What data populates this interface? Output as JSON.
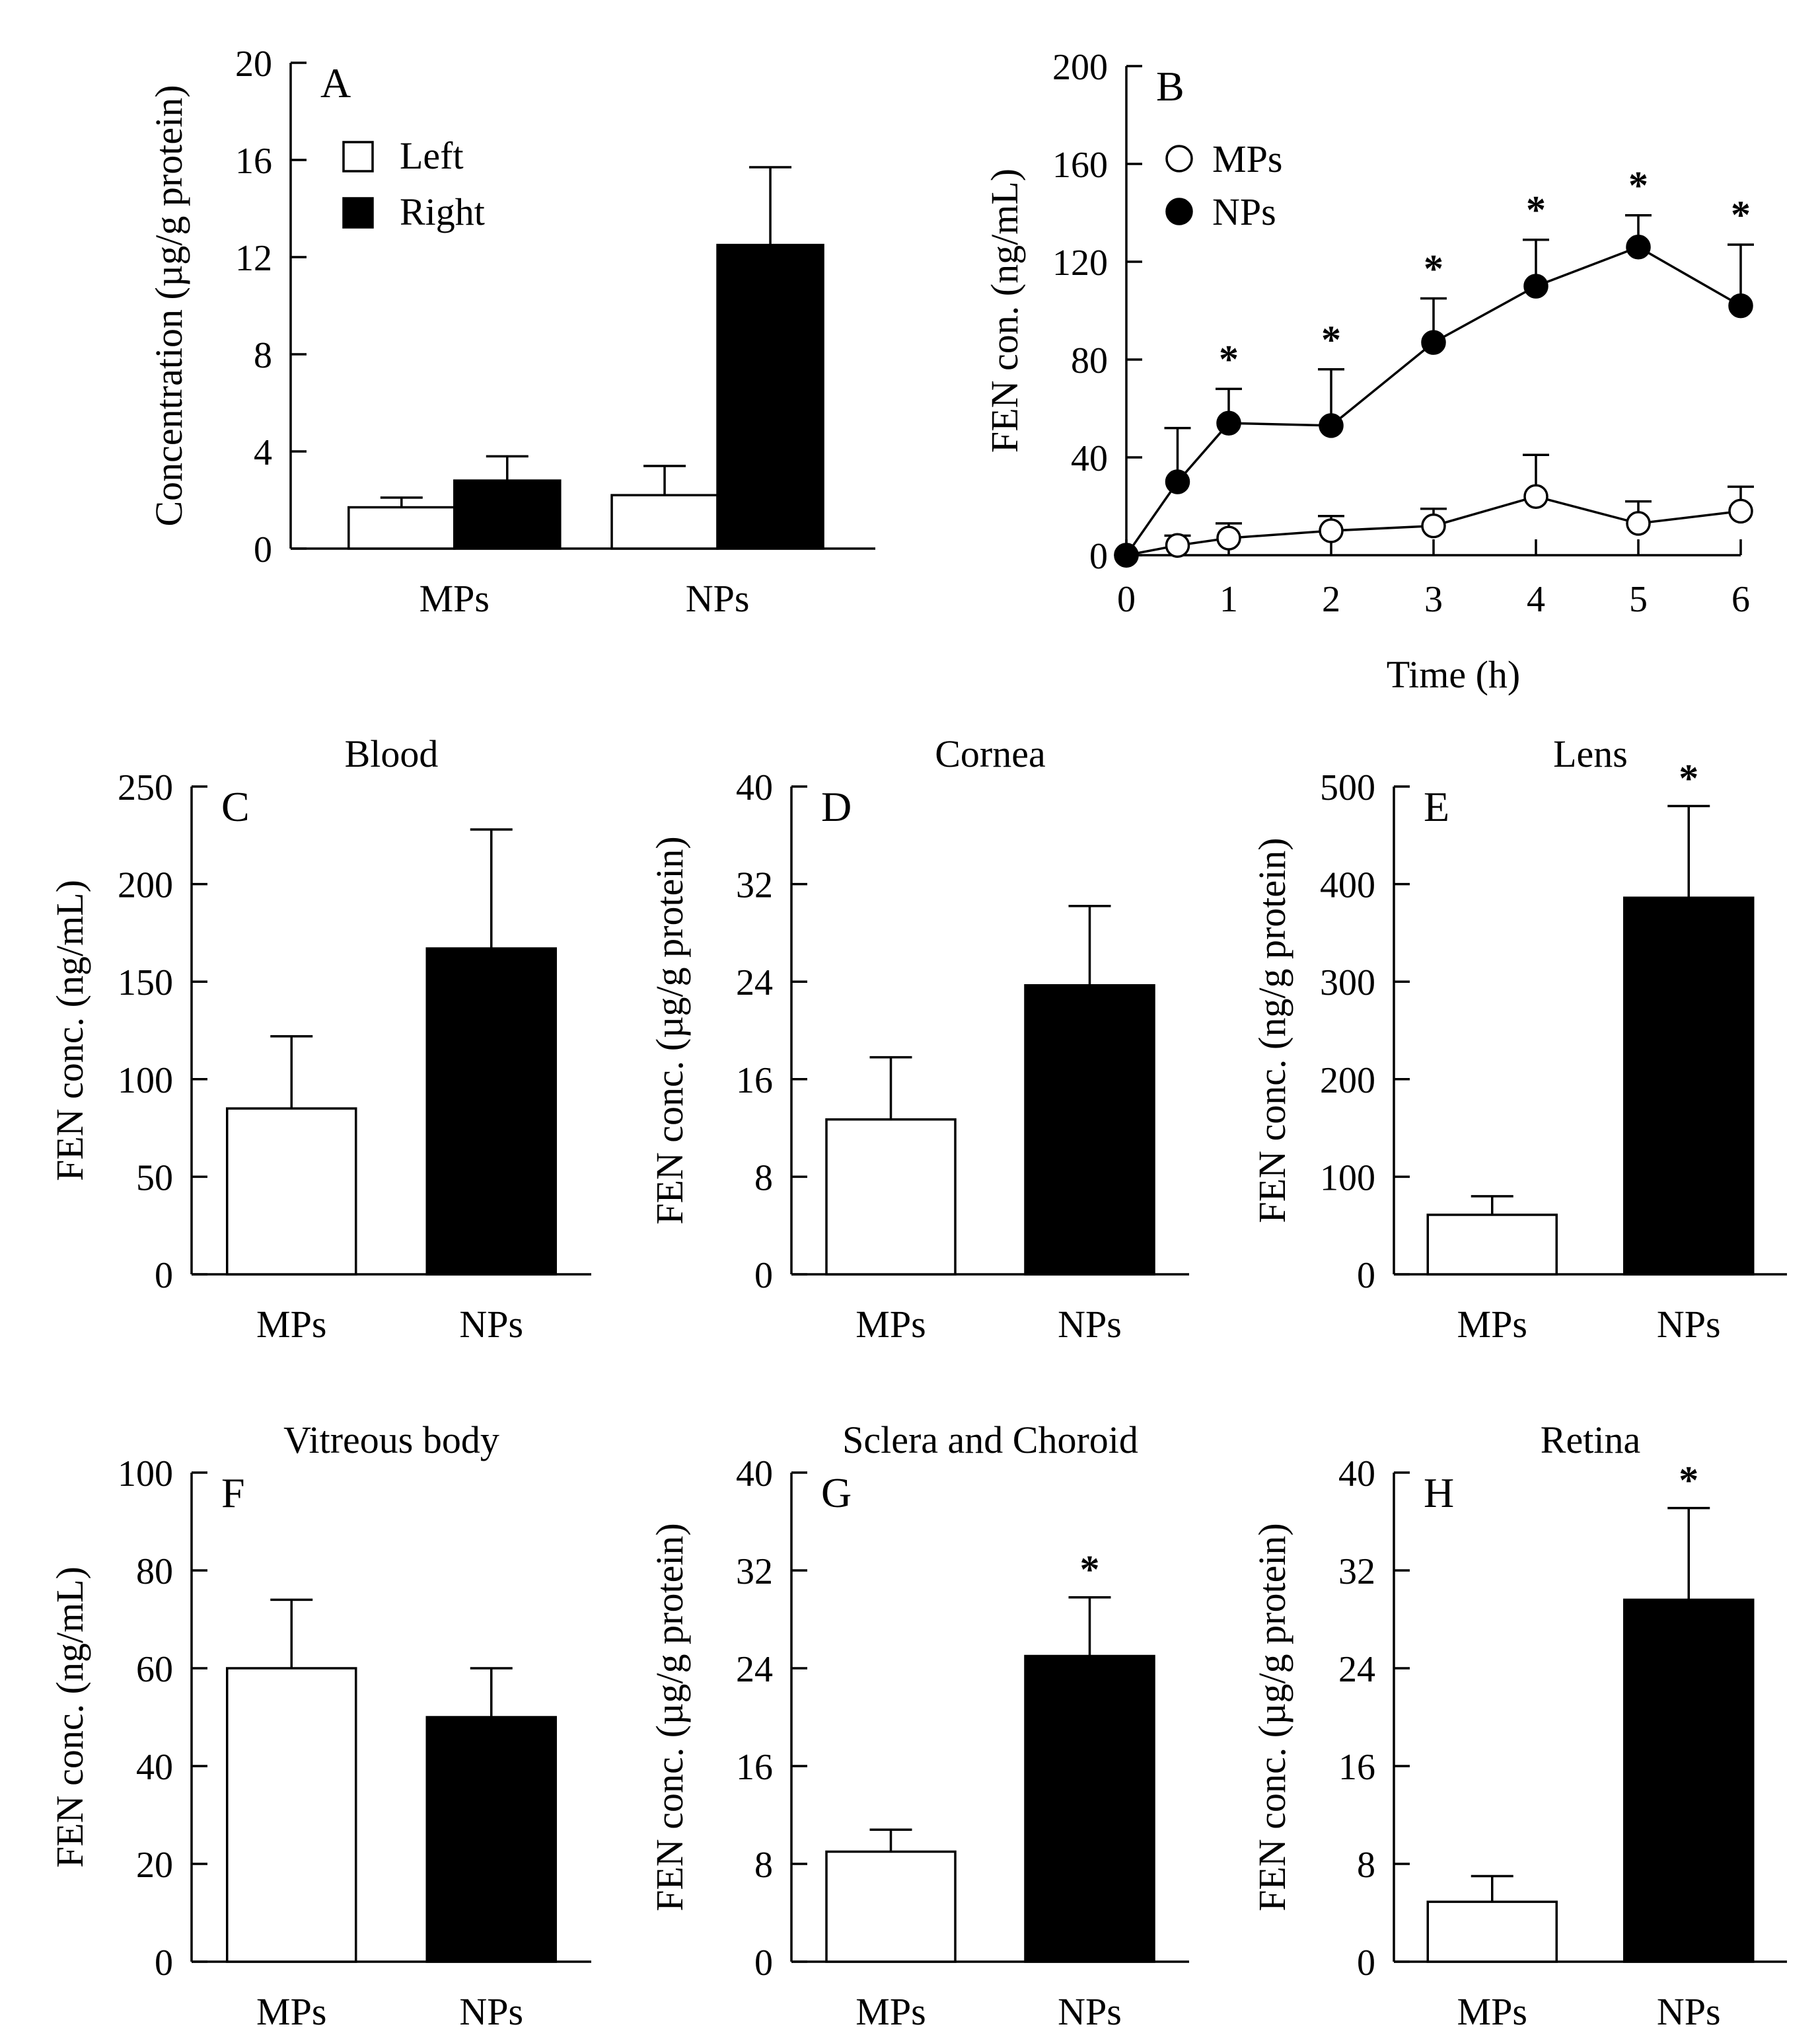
{
  "chart_data": [
    {
      "id": "A",
      "type": "bar",
      "panel_label": "A",
      "title": "",
      "xlabel": "",
      "ylabel": "Concentration (µg/g protein)",
      "ylim": [
        0,
        20
      ],
      "yticks": [
        "0",
        "4",
        "8",
        "12",
        "16",
        "20"
      ],
      "categories": [
        "MPs",
        "NPs"
      ],
      "series": [
        {
          "name": "Left",
          "fill": "#ffffff",
          "values": [
            1.7,
            2.2
          ],
          "errors": [
            0.4,
            1.2
          ]
        },
        {
          "name": "Right",
          "fill": "#000000",
          "values": [
            2.8,
            12.5
          ],
          "errors": [
            1.0,
            3.2
          ]
        }
      ],
      "legend": {
        "position": "top-left",
        "entries": [
          "Left",
          "Right"
        ]
      },
      "annotations": []
    },
    {
      "id": "B",
      "type": "line",
      "panel_label": "B",
      "title": "",
      "xlabel": "Time (h)",
      "ylabel": "FEN con. (ng/mL)",
      "xlim": [
        0,
        6
      ],
      "ylim": [
        0,
        200
      ],
      "xticks": [
        "0",
        "1",
        "2",
        "3",
        "4",
        "5",
        "6"
      ],
      "yticks": [
        "0",
        "40",
        "80",
        "120",
        "160",
        "200"
      ],
      "x": [
        0,
        0.5,
        1,
        2,
        3,
        4,
        5,
        6
      ],
      "series": [
        {
          "name": "MPs",
          "marker": "open-circle",
          "values": [
            0,
            4,
            7,
            10,
            12,
            24,
            13,
            18
          ],
          "errors": [
            0,
            4,
            6,
            6,
            7,
            17,
            9,
            10
          ]
        },
        {
          "name": "NPs",
          "marker": "filled-circle",
          "values": [
            0,
            30,
            54,
            53,
            87,
            110,
            126,
            102
          ],
          "errors": [
            0,
            22,
            14,
            23,
            18,
            19,
            13,
            25
          ]
        }
      ],
      "significance": [
        {
          "x": 1,
          "mark": "*"
        },
        {
          "x": 2,
          "mark": "*"
        },
        {
          "x": 3,
          "mark": "*"
        },
        {
          "x": 4,
          "mark": "*"
        },
        {
          "x": 5,
          "mark": "*"
        },
        {
          "x": 6,
          "mark": "*"
        }
      ],
      "legend": {
        "position": "top-left",
        "entries": [
          "MPs",
          "NPs"
        ]
      }
    },
    {
      "id": "C",
      "type": "bar",
      "panel_label": "C",
      "title": "Blood",
      "xlabel": "",
      "ylabel": "FEN conc. (ng/mL)",
      "ylim": [
        0,
        250
      ],
      "yticks": [
        "0",
        "50",
        "100",
        "150",
        "200",
        "250"
      ],
      "categories": [
        "MPs",
        "NPs"
      ],
      "series": [
        {
          "name": "FEN conc.",
          "values": [
            85,
            167
          ],
          "errors": [
            37,
            61
          ],
          "fills": [
            "#ffffff",
            "#000000"
          ]
        }
      ],
      "annotations": []
    },
    {
      "id": "D",
      "type": "bar",
      "panel_label": "D",
      "title": "Cornea",
      "xlabel": "",
      "ylabel": "FEN conc. (µg/g protein)",
      "ylim": [
        0,
        40
      ],
      "yticks": [
        "0",
        "8",
        "16",
        "24",
        "32",
        "40"
      ],
      "categories": [
        "MPs",
        "NPs"
      ],
      "series": [
        {
          "name": "FEN conc.",
          "values": [
            12.7,
            23.7
          ],
          "errors": [
            5.1,
            6.5
          ],
          "fills": [
            "#ffffff",
            "#000000"
          ]
        }
      ],
      "annotations": []
    },
    {
      "id": "E",
      "type": "bar",
      "panel_label": "E",
      "title": "Lens",
      "xlabel": "",
      "ylabel": "FEN conc. (ng/g protein)",
      "ylim": [
        0,
        500
      ],
      "yticks": [
        "0",
        "100",
        "200",
        "300",
        "400",
        "500"
      ],
      "categories": [
        "MPs",
        "NPs"
      ],
      "series": [
        {
          "name": "FEN conc.",
          "values": [
            61,
            386
          ],
          "errors": [
            19,
            94
          ],
          "fills": [
            "#ffffff",
            "#000000"
          ]
        }
      ],
      "annotations": [
        {
          "category": "NPs",
          "mark": "*"
        }
      ]
    },
    {
      "id": "F",
      "type": "bar",
      "panel_label": "F",
      "title": "Vitreous body",
      "xlabel": "",
      "ylabel": "FEN conc. (ng/mL)",
      "ylim": [
        0,
        100
      ],
      "yticks": [
        "0",
        "20",
        "40",
        "60",
        "80",
        "100"
      ],
      "categories": [
        "MPs",
        "NPs"
      ],
      "series": [
        {
          "name": "FEN conc.",
          "values": [
            60,
            50
          ],
          "errors": [
            14,
            10
          ],
          "fills": [
            "#ffffff",
            "#000000"
          ]
        }
      ],
      "annotations": []
    },
    {
      "id": "G",
      "type": "bar",
      "panel_label": "G",
      "title": "Sclera and Choroid",
      "xlabel": "",
      "ylabel": "FEN conc. (µg/g protein)",
      "ylim": [
        0,
        40
      ],
      "yticks": [
        "0",
        "8",
        "16",
        "24",
        "32",
        "40"
      ],
      "categories": [
        "MPs",
        "NPs"
      ],
      "series": [
        {
          "name": "FEN conc.",
          "values": [
            9,
            25
          ],
          "errors": [
            1.8,
            4.8
          ],
          "fills": [
            "#ffffff",
            "#000000"
          ]
        }
      ],
      "annotations": [
        {
          "category": "NPs",
          "mark": "*"
        }
      ]
    },
    {
      "id": "H",
      "type": "bar",
      "panel_label": "H",
      "title": "Retina",
      "xlabel": "",
      "ylabel": "FEN conc. (µg/g protein)",
      "ylim": [
        0,
        40
      ],
      "yticks": [
        "0",
        "8",
        "16",
        "24",
        "32",
        "40"
      ],
      "categories": [
        "MPs",
        "NPs"
      ],
      "series": [
        {
          "name": "FEN conc.",
          "values": [
            4.9,
            29.6
          ],
          "errors": [
            2.1,
            7.5
          ],
          "fills": [
            "#ffffff",
            "#000000"
          ]
        }
      ],
      "annotations": [
        {
          "category": "NPs",
          "mark": "*"
        }
      ]
    }
  ]
}
